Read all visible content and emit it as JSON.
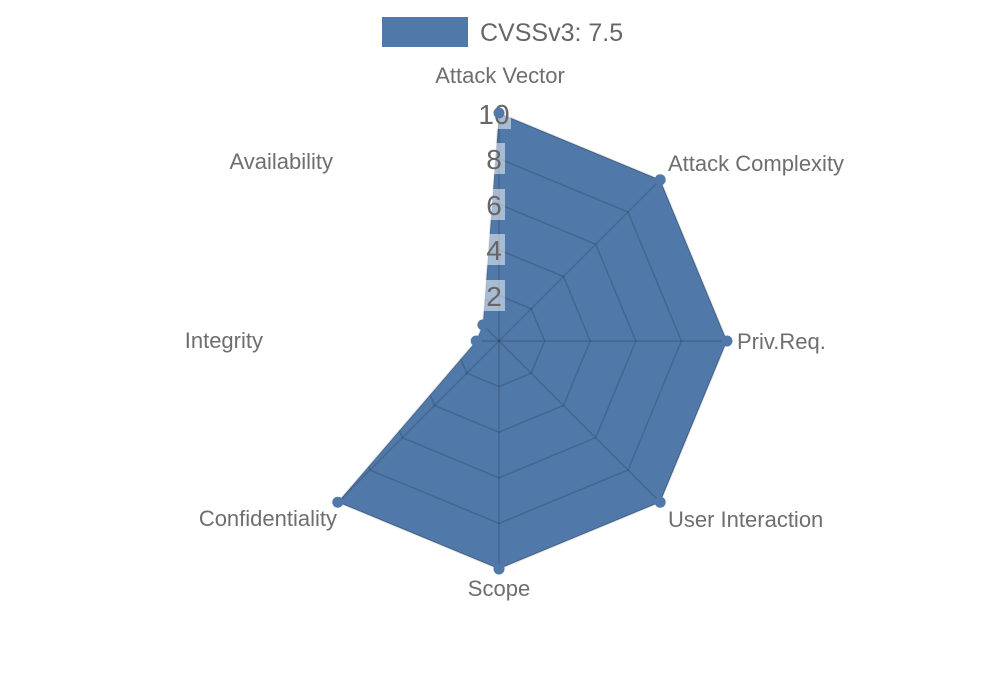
{
  "legend": {
    "label": "CVSSv3: 7.5"
  },
  "chart_data": {
    "type": "radar",
    "title": "CVSSv3: 7.5",
    "legend_position": "top",
    "categories": [
      "Attack Vector",
      "Attack Complexity",
      "Priv.Req.",
      "User Interaction",
      "Scope",
      "Confidentiality",
      "Integrity",
      "Availability"
    ],
    "series": [
      {
        "name": "CVSSv3: 7.5",
        "values": [
          10,
          10,
          10,
          10,
          10,
          10,
          1,
          1
        ]
      }
    ],
    "ticks": [
      "2",
      "4",
      "6",
      "8",
      "10"
    ],
    "rmin": 0,
    "rmax": 10,
    "grid": true,
    "grid_visible_only_inside_fill": true,
    "colors": {
      "series_fill": "#5078a8",
      "grid_line": "rgba(0,0,0,0.15)",
      "tick_box_bg": "rgba(255,255,255,0.5)",
      "tick_text": "#666666",
      "axis_label": "#6e6e6e",
      "legend_text": "#666666"
    }
  }
}
